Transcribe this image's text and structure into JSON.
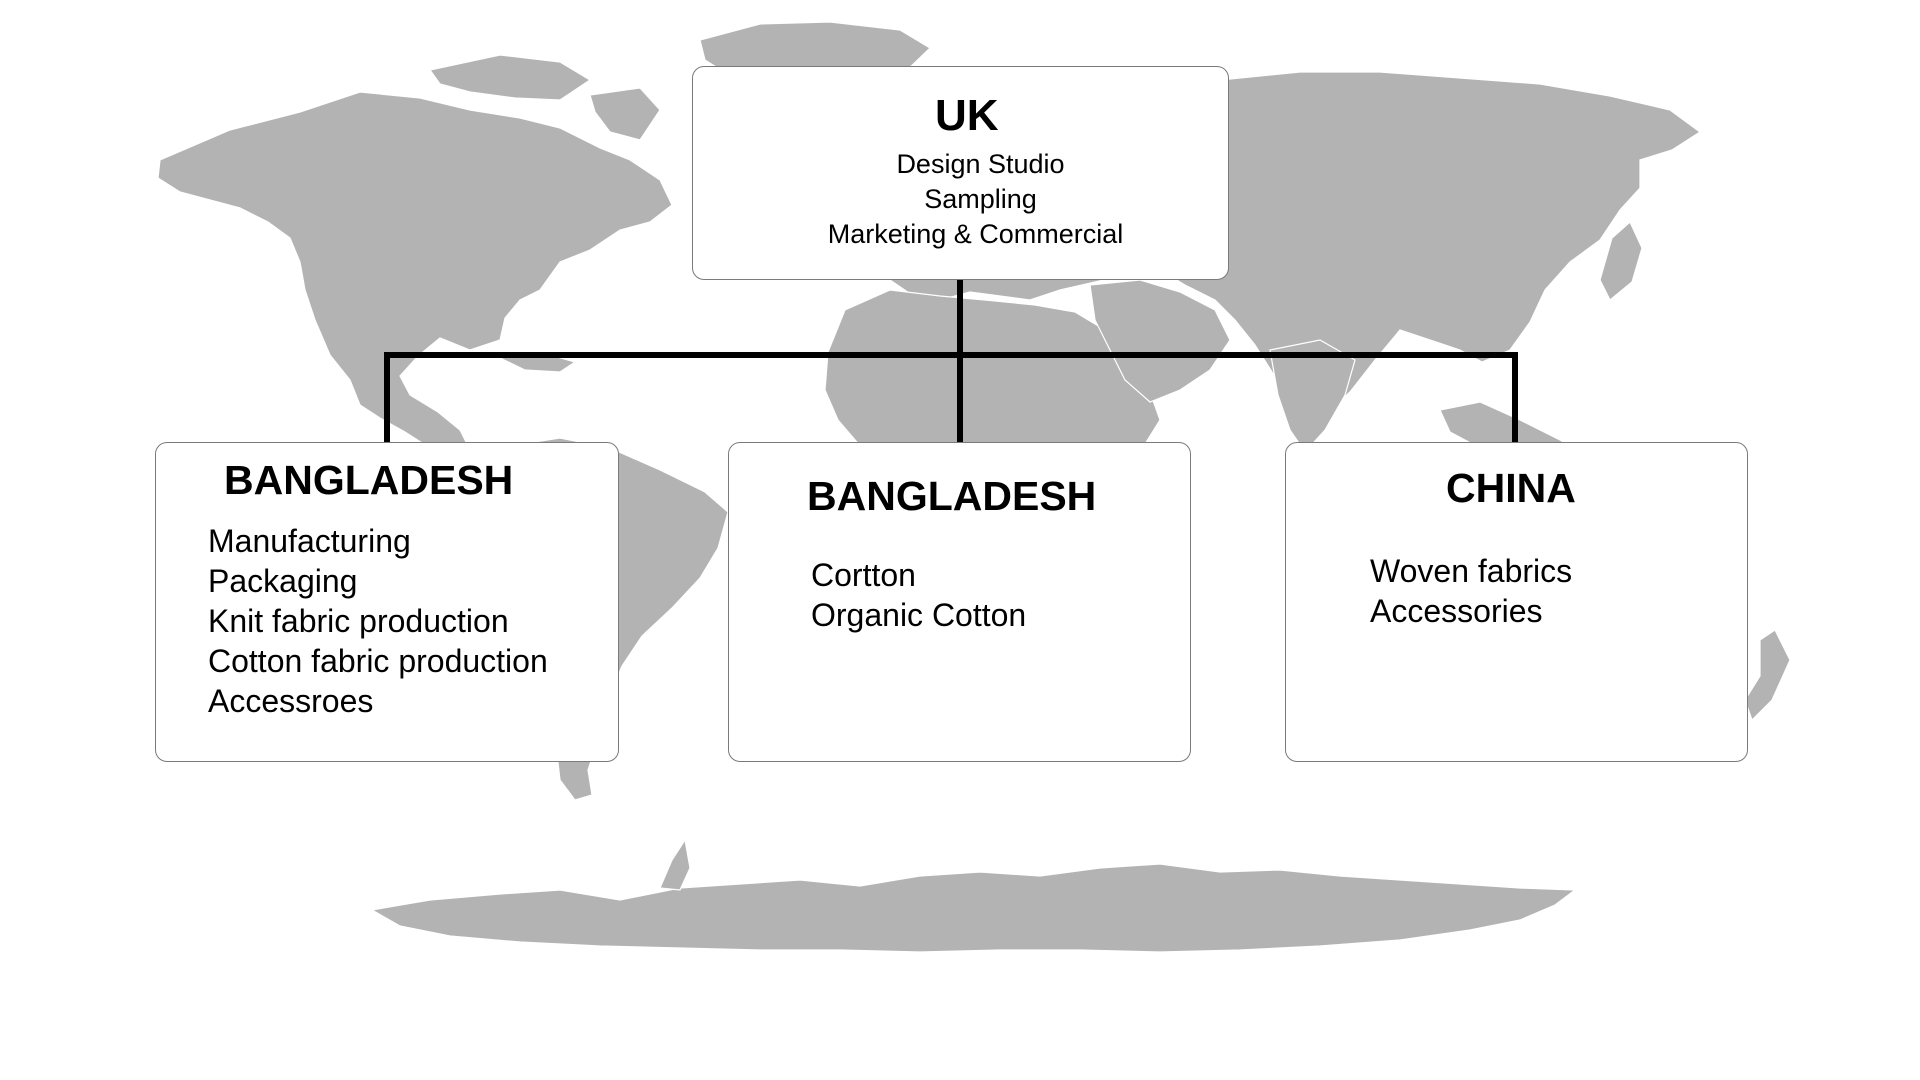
{
  "map": {
    "land_color": "#b3b3b3",
    "background_color": "#ffffff"
  },
  "connector_color": "#000000",
  "hub": {
    "title": "UK",
    "lines": [
      "Design  Studio",
      "Sampling",
      "Marketing & Commercial"
    ]
  },
  "branches": [
    {
      "title": "BANGLADESH",
      "lines": [
        "Manufacturing",
        "Packaging",
        "Knit fabric production",
        "Cotton fabric production",
        "Accessroes"
      ]
    },
    {
      "title": "BANGLADESH",
      "lines": [
        "Cortton",
        "Organic Cotton"
      ]
    },
    {
      "title": "CHINA",
      "lines": [
        "Woven  fabrics",
        "Accessories"
      ]
    }
  ]
}
